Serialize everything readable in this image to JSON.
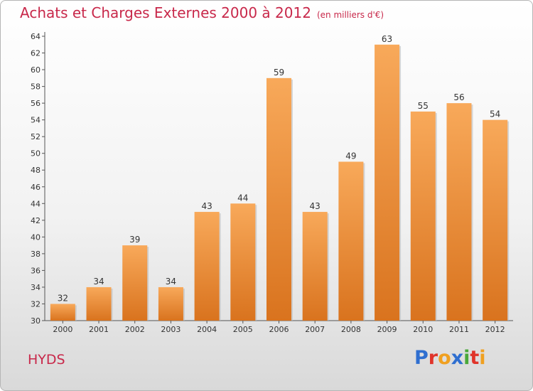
{
  "header": {
    "title": "Achats et Charges Externes 2000 à 2012",
    "unit": "(en milliers d'€)"
  },
  "commune": "HYDS",
  "logo": {
    "letters": [
      {
        "char": "P",
        "color": "#2f6fd0"
      },
      {
        "char": "r",
        "color": "#e0342a"
      },
      {
        "char": "o",
        "color": "#f0a020"
      },
      {
        "char": "x",
        "color": "#2f6fd0"
      },
      {
        "char": "i",
        "color": "#4aa83a"
      },
      {
        "char": "t",
        "color": "#e0342a"
      },
      {
        "char": "i",
        "color": "#f0a020"
      }
    ]
  },
  "colors": {
    "title": "#c8284a",
    "bar_light": "#f8a95a",
    "bar_dark": "#d9731e"
  },
  "chart_data": {
    "type": "bar",
    "title": "Achats et Charges Externes 2000 à 2012",
    "categories": [
      "2000",
      "2001",
      "2002",
      "2003",
      "2004",
      "2005",
      "2006",
      "2007",
      "2008",
      "2009",
      "2010",
      "2011",
      "2012"
    ],
    "values": [
      32,
      34,
      39,
      34,
      43,
      44,
      59,
      43,
      49,
      63,
      55,
      56,
      54
    ],
    "ylim": [
      30,
      64
    ],
    "yticks": [
      30,
      32,
      34,
      36,
      38,
      40,
      42,
      44,
      46,
      48,
      50,
      52,
      54,
      56,
      58,
      60,
      62,
      64
    ],
    "grid": false,
    "legend": "none"
  }
}
